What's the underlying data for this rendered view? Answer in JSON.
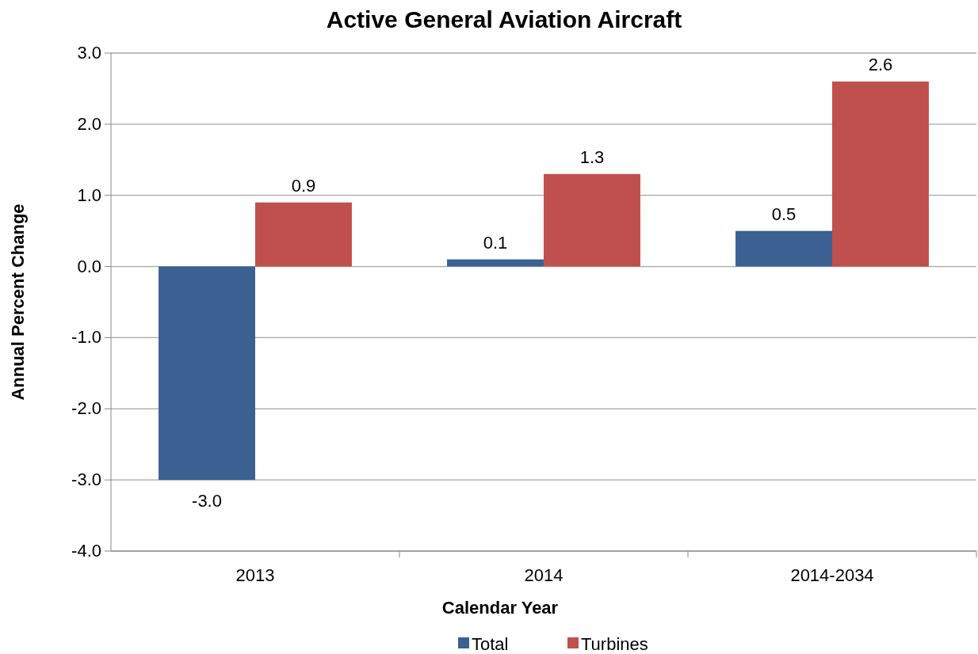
{
  "chart_data": {
    "type": "bar",
    "title": "Active General Aviation Aircraft",
    "xlabel": "Calendar Year",
    "ylabel": "Annual Percent Change",
    "categories": [
      "2013",
      "2014",
      "2014-2034"
    ],
    "series": [
      {
        "name": "Total",
        "color": "#3a6192",
        "values": [
          -3.0,
          0.1,
          0.5
        ],
        "value_labels": [
          "-3.0",
          "0.1",
          "0.5"
        ]
      },
      {
        "name": "Turbines",
        "color": "#c0504d",
        "values": [
          0.9,
          1.3,
          2.6
        ],
        "value_labels": [
          "0.9",
          "1.3",
          "2.6"
        ]
      }
    ],
    "ylim": [
      -4,
      3
    ],
    "yticks": [
      {
        "value": -4,
        "label": "-4.0"
      },
      {
        "value": -3,
        "label": "-3.0"
      },
      {
        "value": -2,
        "label": "-2.0"
      },
      {
        "value": -1,
        "label": "-1.0"
      },
      {
        "value": 0,
        "label": "0.0"
      },
      {
        "value": 1,
        "label": "1.0"
      },
      {
        "value": 2,
        "label": "2.0"
      },
      {
        "value": 3,
        "label": "3.0"
      }
    ],
    "grid": "y",
    "legend": "bottom"
  }
}
